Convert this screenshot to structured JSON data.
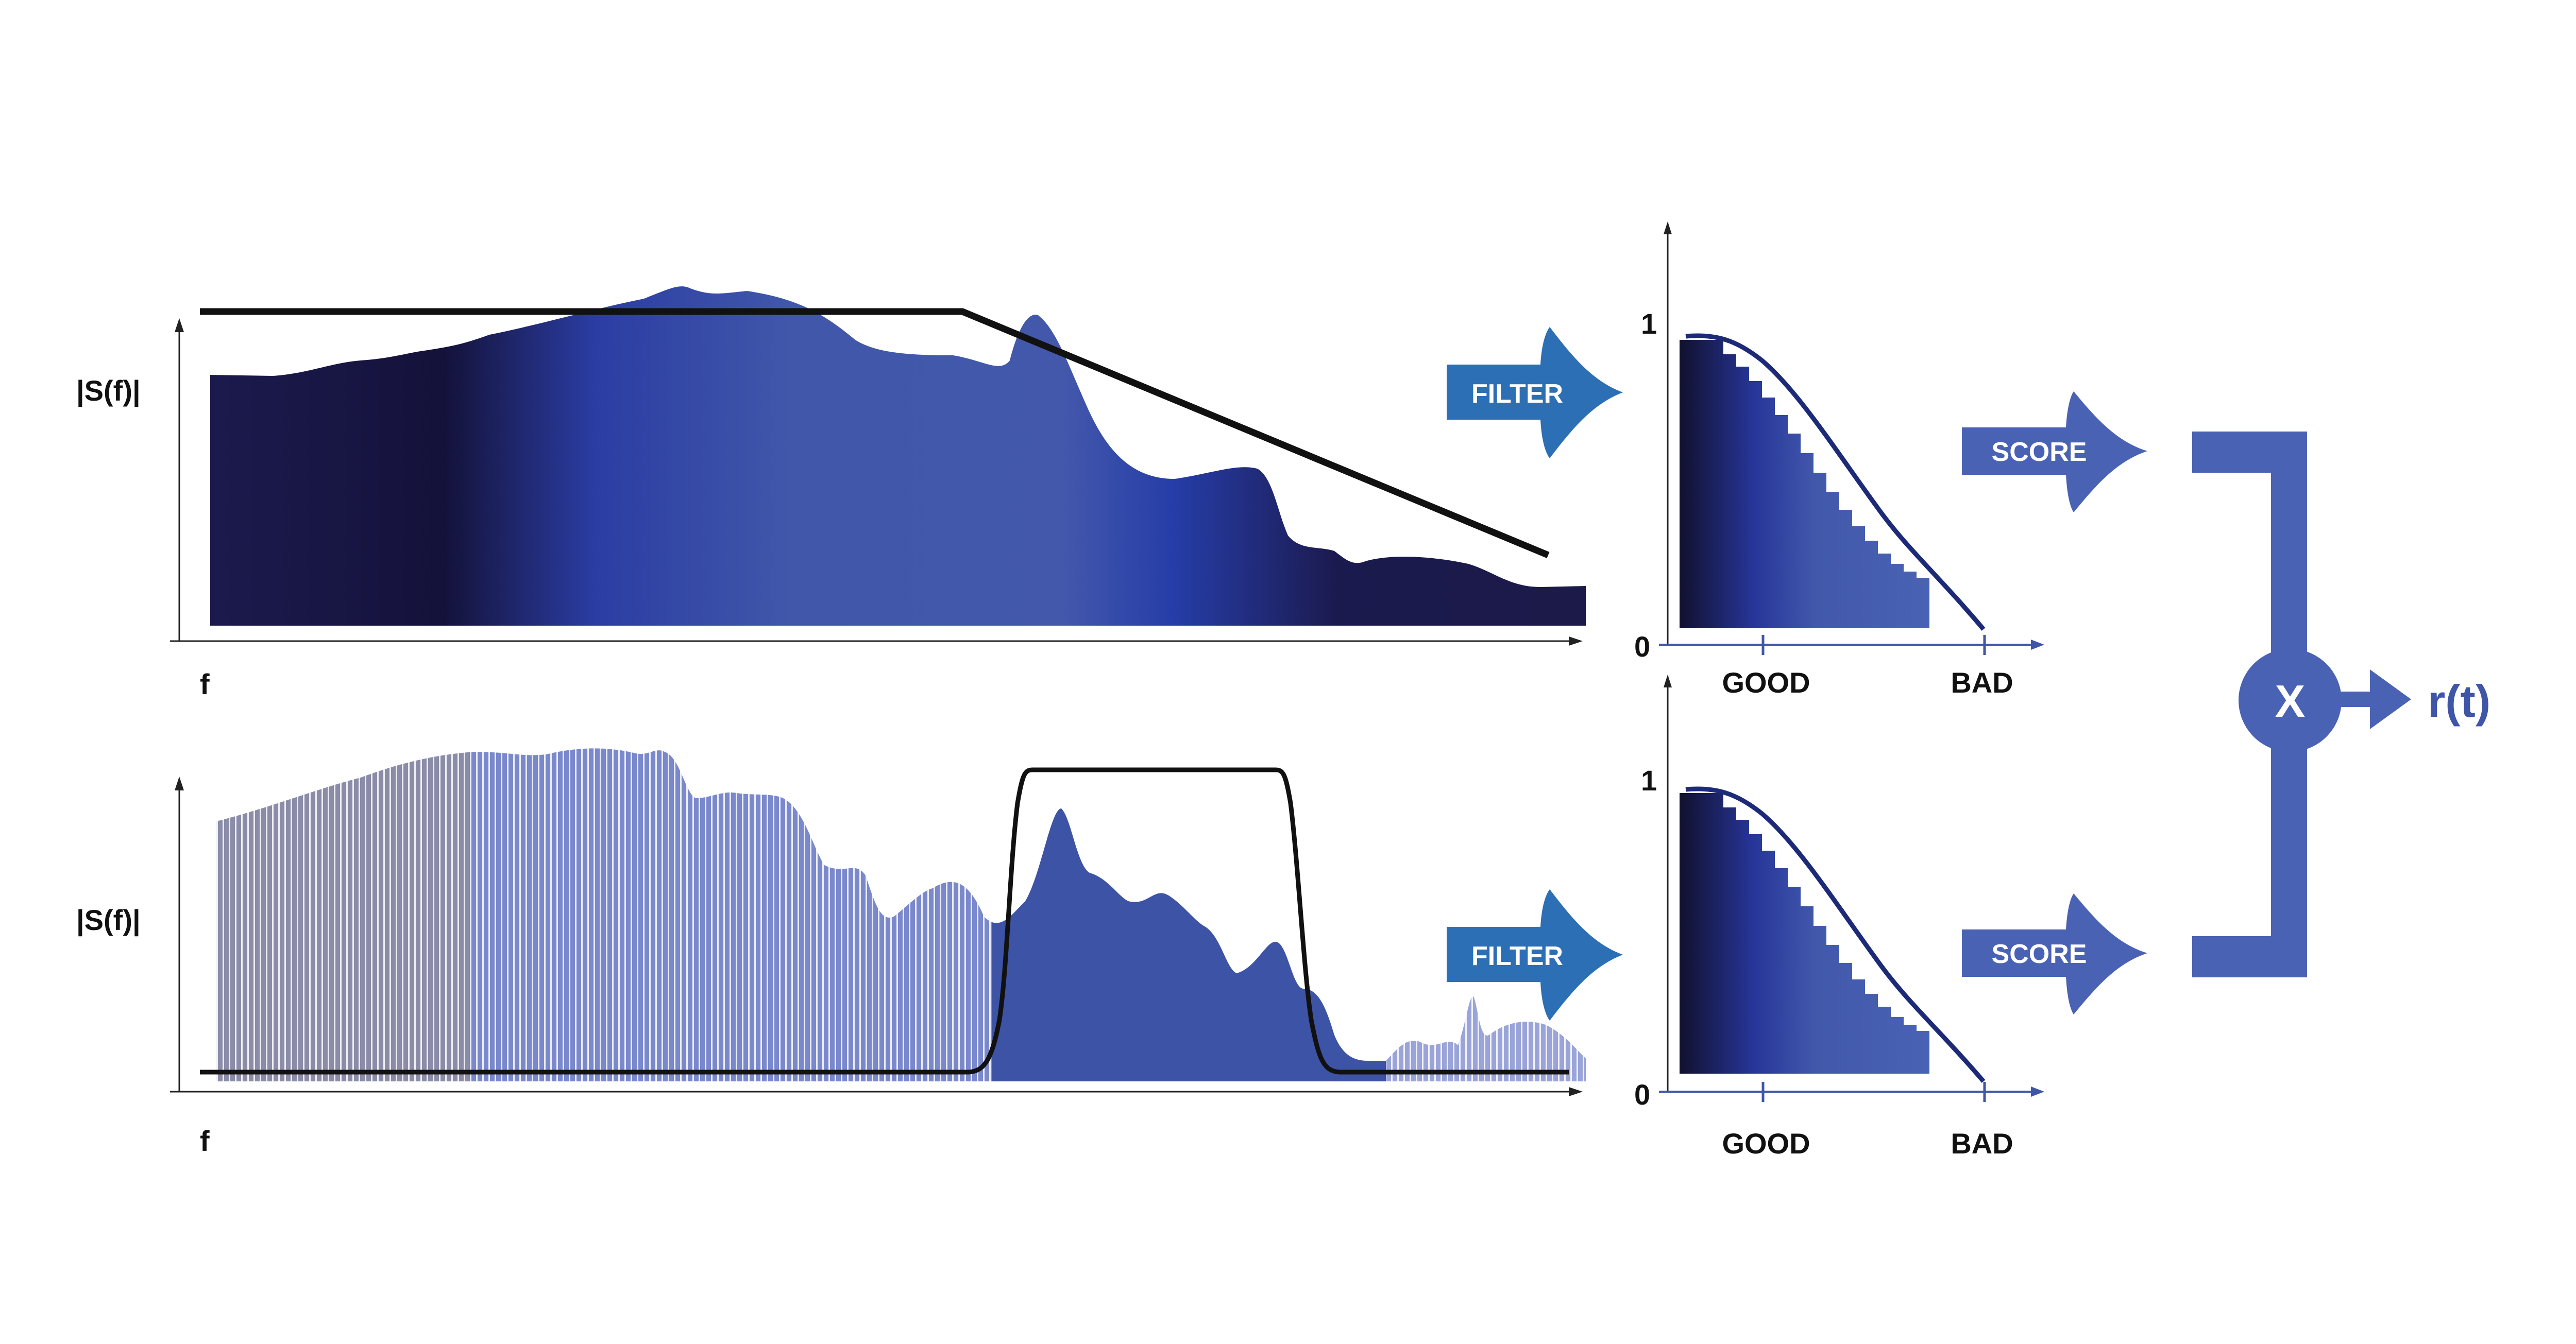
{
  "colors": {
    "navy": "#14123a",
    "royal": "#2c3fa8",
    "mid": "#4258ab",
    "accent_arrow": "#2d6fb5",
    "score_block": "#4a62b4",
    "output_text": "#3f55a8"
  },
  "top_spectrum": {
    "ylabel": "|S(f)|",
    "xlabel": "f"
  },
  "bottom_spectrum": {
    "ylabel": "|S(f)|",
    "xlabel": "f"
  },
  "top_score_plot": {
    "y_top": "1",
    "y_bottom": "0",
    "x_good": "GOOD",
    "x_bad": "BAD"
  },
  "bottom_score_plot": {
    "y_top": "1",
    "y_bottom": "0",
    "x_good": "GOOD",
    "x_bad": "BAD"
  },
  "arrows": {
    "filter_top": "FILTER",
    "filter_bottom": "FILTER",
    "score_top": "SCORE",
    "score_bottom": "SCORE"
  },
  "combiner": {
    "symbol": "X",
    "output": "r(t)"
  }
}
